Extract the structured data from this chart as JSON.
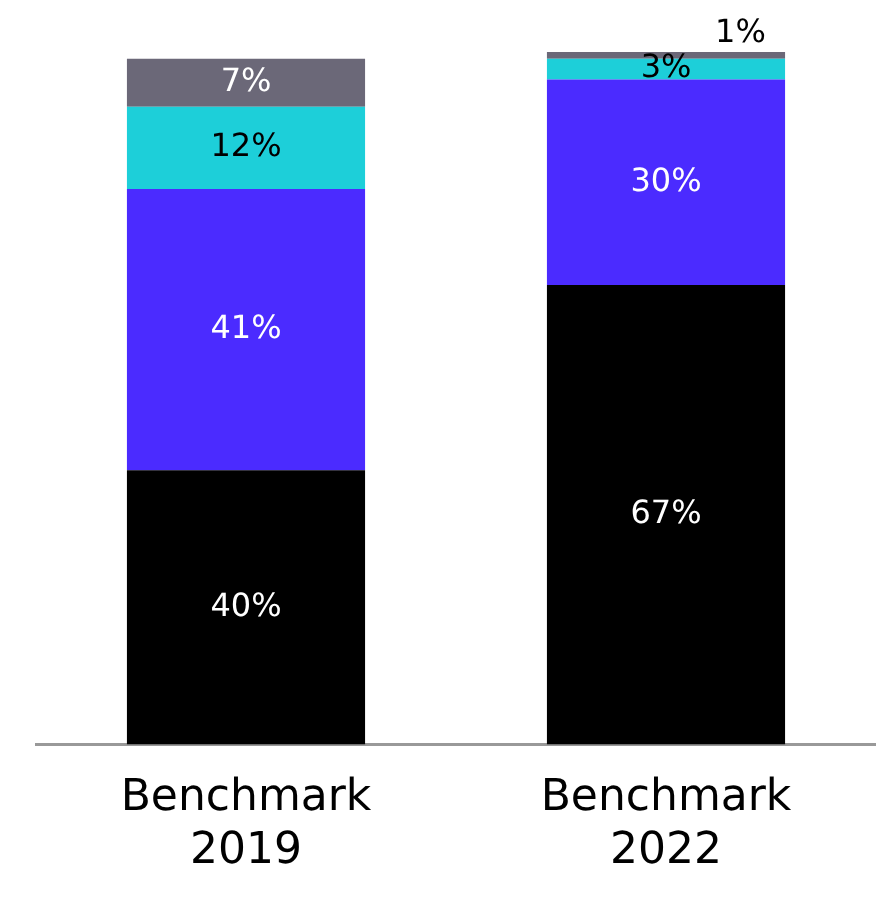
{
  "chart_data": {
    "type": "bar",
    "stacked": true,
    "categories": [
      "Benchmark\n2019",
      "Benchmark\n2022"
    ],
    "series": [
      {
        "color": "#000000",
        "values": [
          40,
          67
        ],
        "value_labels": [
          "40%",
          "67%"
        ]
      },
      {
        "color": "#4b2bff",
        "values": [
          41,
          30
        ],
        "value_labels": [
          "41%",
          "30%"
        ]
      },
      {
        "color": "#1dcfd9",
        "values": [
          12,
          3
        ],
        "value_labels": [
          "12%",
          "3%"
        ]
      },
      {
        "color": "#6b6878",
        "values": [
          7,
          1
        ],
        "value_labels": [
          "7%",
          "1%"
        ]
      }
    ]
  }
}
